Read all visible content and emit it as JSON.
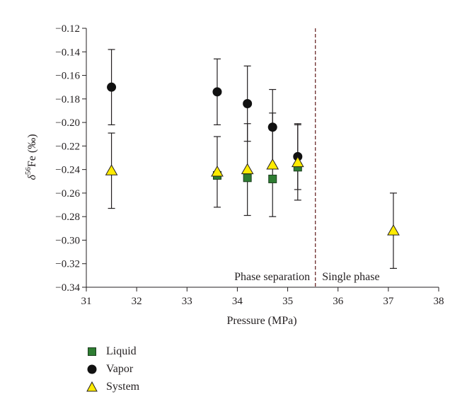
{
  "chart_data": {
    "type": "scatter",
    "xlabel": "Pressure (MPa)",
    "ylabel_base": "δ",
    "ylabel_sup": "56",
    "ylabel_rest": "Fe (‰)",
    "xlim": [
      31,
      38
    ],
    "ylim": [
      -0.34,
      -0.12
    ],
    "xticks": [
      31,
      32,
      33,
      34,
      35,
      36,
      37,
      38
    ],
    "yticks": [
      -0.34,
      -0.32,
      -0.3,
      -0.28,
      -0.26,
      -0.24,
      -0.22,
      -0.2,
      -0.18,
      -0.16,
      -0.14,
      -0.12
    ],
    "divider_x": 35.55,
    "regions": [
      {
        "label": "Phase separation",
        "anchor": "end",
        "x": 35.5
      },
      {
        "label": "Single phase",
        "anchor": "start",
        "x": 35.6
      }
    ],
    "series": [
      {
        "name": "Liquid",
        "marker": "square",
        "color": "#2e7d32",
        "points": [
          {
            "x": 33.6,
            "y": -0.245,
            "err": 0
          },
          {
            "x": 34.2,
            "y": -0.247,
            "err": 0
          },
          {
            "x": 34.7,
            "y": -0.248,
            "err": 0
          },
          {
            "x": 35.2,
            "y": -0.238,
            "err": 0
          }
        ]
      },
      {
        "name": "Vapor",
        "marker": "circle",
        "color": "#111111",
        "points": [
          {
            "x": 31.5,
            "y": -0.17,
            "err": 0.032
          },
          {
            "x": 33.6,
            "y": -0.174,
            "err": 0.028
          },
          {
            "x": 34.2,
            "y": -0.184,
            "err": 0.032
          },
          {
            "x": 34.7,
            "y": -0.204,
            "err": 0.032
          },
          {
            "x": 35.2,
            "y": -0.229,
            "err": 0.028
          }
        ]
      },
      {
        "name": "System",
        "marker": "triangle",
        "color": "#ffeb00",
        "points": [
          {
            "x": 31.5,
            "y": -0.241,
            "err": 0.032
          },
          {
            "x": 33.6,
            "y": -0.242,
            "err": 0.03
          },
          {
            "x": 34.2,
            "y": -0.24,
            "err": 0.039
          },
          {
            "x": 34.7,
            "y": -0.236,
            "err": 0.044
          },
          {
            "x": 35.2,
            "y": -0.234,
            "err": 0.032
          },
          {
            "x": 37.1,
            "y": -0.292,
            "err": 0.032
          }
        ]
      }
    ],
    "legend_placement": "bottom-left",
    "grid": false
  }
}
